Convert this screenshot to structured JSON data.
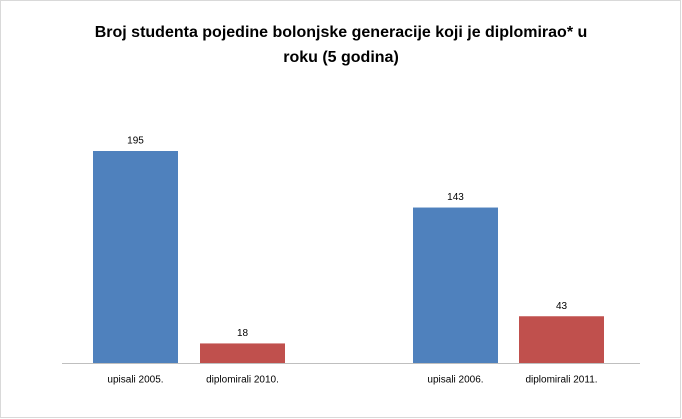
{
  "chart_data": {
    "type": "bar",
    "title": "Broj studenta pojedine bolonjske generacije koji je diplomirao* u roku (5 godina)",
    "categories": [
      "upisali 2005.",
      "diplomirali 2010.",
      "upisali 2006.",
      "diplomirali 2011."
    ],
    "values": [
      195,
      18,
      143,
      43
    ],
    "colors": [
      "#4f81bd",
      "#c0504d",
      "#4f81bd",
      "#c0504d"
    ]
  }
}
